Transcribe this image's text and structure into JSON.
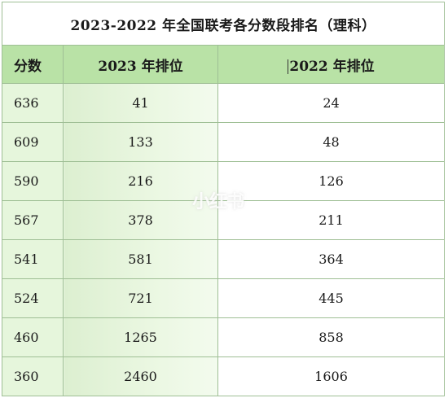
{
  "table": {
    "title": "2023-2022 年全国联考各分数段排名（理科）",
    "headers": [
      "分数",
      "2023 年排位",
      "2022 年排位"
    ],
    "rows": [
      {
        "score": "636",
        "rank_2023": "41",
        "rank_2022": "24"
      },
      {
        "score": "609",
        "rank_2023": "133",
        "rank_2022": "48"
      },
      {
        "score": "590",
        "rank_2023": "216",
        "rank_2022": "126"
      },
      {
        "score": "567",
        "rank_2023": "378",
        "rank_2022": "211"
      },
      {
        "score": "541",
        "rank_2023": "581",
        "rank_2022": "364"
      },
      {
        "score": "524",
        "rank_2023": "721",
        "rank_2022": "445"
      },
      {
        "score": "460",
        "rank_2023": "1265",
        "rank_2022": "858"
      },
      {
        "score": "360",
        "rank_2023": "2460",
        "rank_2022": "1606"
      }
    ]
  },
  "watermark": "小红书",
  "colors": {
    "header_bg": "#b9e2a6",
    "score_col_bg": "#e6f6dc",
    "border": "#9fbf95"
  }
}
